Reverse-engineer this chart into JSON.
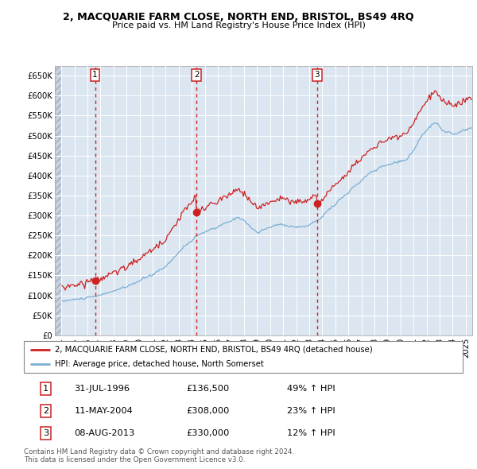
{
  "title": "2, MACQUARIE FARM CLOSE, NORTH END, BRISTOL, BS49 4RQ",
  "subtitle": "Price paid vs. HM Land Registry's House Price Index (HPI)",
  "legend_label1": "2, MACQUARIE FARM CLOSE, NORTH END, BRISTOL, BS49 4RQ (detached house)",
  "legend_label2": "HPI: Average price, detached house, North Somerset",
  "footer1": "Contains HM Land Registry data © Crown copyright and database right 2024.",
  "footer2": "This data is licensed under the Open Government Licence v3.0.",
  "sale_points": [
    {
      "num": 1,
      "date_label": "31-JUL-1996",
      "price": 136500,
      "pct": "49%",
      "x": 1996.583
    },
    {
      "num": 2,
      "date_label": "11-MAY-2004",
      "price": 308000,
      "pct": "23%",
      "x": 2004.37
    },
    {
      "num": 3,
      "date_label": "08-AUG-2013",
      "price": 330000,
      "pct": "12%",
      "x": 2013.6
    }
  ],
  "table_rows": [
    {
      "num": "1",
      "date": "31-JUL-1996",
      "price": "£136,500",
      "pct": "49% ↑ HPI"
    },
    {
      "num": "2",
      "date": "11-MAY-2004",
      "price": "£308,000",
      "pct": "23% ↑ HPI"
    },
    {
      "num": "3",
      "date": "08-AUG-2013",
      "price": "£330,000",
      "pct": "12% ↑ HPI"
    }
  ],
  "hpi_color": "#7bafd4",
  "price_color": "#cc2222",
  "dashed_color": "#cc2222",
  "bg_color": "#dce6f1",
  "grid_color": "#ffffff",
  "ylim": [
    0,
    675000
  ],
  "xlim": [
    1993.5,
    2025.5
  ],
  "ytick_vals": [
    0,
    50000,
    100000,
    150000,
    200000,
    250000,
    300000,
    350000,
    400000,
    450000,
    500000,
    550000,
    600000,
    650000
  ],
  "ytick_labels": [
    "£0",
    "£50K",
    "£100K",
    "£150K",
    "£200K",
    "£250K",
    "£300K",
    "£350K",
    "£400K",
    "£450K",
    "£500K",
    "£550K",
    "£600K",
    "£650K"
  ],
  "xticks": [
    1994,
    1995,
    1996,
    1997,
    1998,
    1999,
    2000,
    2001,
    2002,
    2003,
    2004,
    2005,
    2006,
    2007,
    2008,
    2009,
    2010,
    2011,
    2012,
    2013,
    2014,
    2015,
    2016,
    2017,
    2018,
    2019,
    2020,
    2021,
    2022,
    2023,
    2024,
    2025
  ]
}
